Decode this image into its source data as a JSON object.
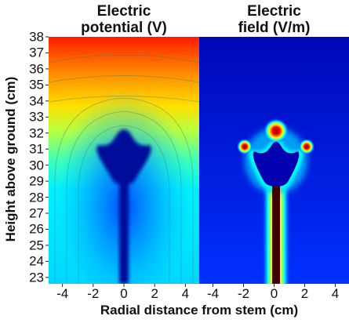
{
  "chart_data": [
    {
      "type": "heatmap",
      "title": [
        "Electric",
        "potential (V)"
      ],
      "xlabel": "Radial distance from stem (cm)",
      "ylabel": "Height above ground (cm)",
      "xlim": [
        -4.9,
        4.9
      ],
      "ylim": [
        22.6,
        38
      ],
      "x_ticks": [
        -4,
        -2,
        0,
        2,
        4
      ],
      "x_tick_labels": [
        "-4",
        "-2",
        "0",
        "2",
        "4"
      ],
      "y_ticks": [
        23,
        24,
        25,
        26,
        27,
        28,
        29,
        30,
        31,
        32,
        33,
        34,
        35,
        36,
        37,
        38
      ],
      "y_tick_labels": [
        "23",
        "24",
        "25",
        "26",
        "27",
        "28",
        "29",
        "30",
        "31",
        "32",
        "33",
        "34",
        "35",
        "36",
        "37",
        "38"
      ],
      "colormap": [
        "#00008f",
        "#0000ff",
        "#0080ff",
        "#00ffff",
        "#80ff80",
        "#ffff00",
        "#ff8000",
        "#ff0000",
        "#800000"
      ],
      "description_values": {
        "low_region": "flower and stem (dark blue)",
        "high_region": "top of domain (red)"
      },
      "grid": false
    },
    {
      "type": "heatmap",
      "title": [
        "Electric",
        "field (V/m)"
      ],
      "xlabel": "Radial distance from stem (cm)",
      "ylabel": "Height above ground (cm)",
      "xlim": [
        -4.9,
        4.9
      ],
      "ylim": [
        22.6,
        38
      ],
      "x_ticks": [
        -4,
        -2,
        0,
        2,
        4
      ],
      "x_tick_labels": [
        "-4",
        "-2",
        "0",
        "2",
        "4"
      ],
      "y_ticks": [
        23,
        24,
        25,
        26,
        27,
        28,
        29,
        30,
        31,
        32,
        33,
        34,
        35,
        36,
        37,
        38
      ],
      "colormap": [
        "#00008f",
        "#0000ff",
        "#0080ff",
        "#00ffff",
        "#80ff80",
        "#ffff00",
        "#ff8000",
        "#ff0000",
        "#800000"
      ],
      "grid": false
    }
  ],
  "colors": {
    "dark_blue": "#00008f",
    "blue": "#0018e8",
    "red": "#ff0000"
  }
}
